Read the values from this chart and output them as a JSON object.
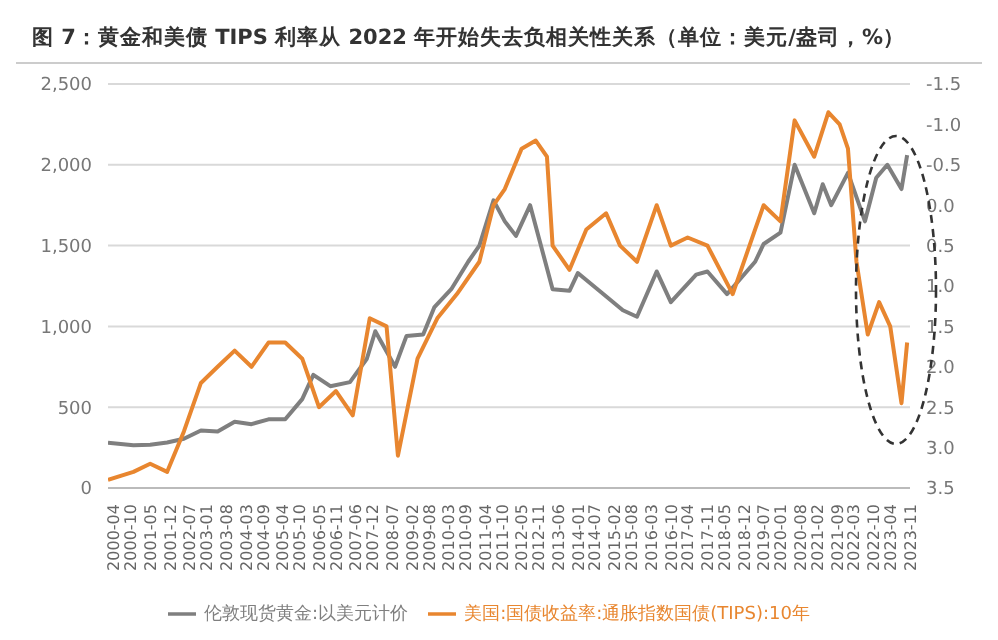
{
  "chart_data": {
    "type": "line",
    "title": "图 7：黄金和美债 TIPS 利率从 2022 年开始失去负相关性关系（单位：美元/盎司，%）",
    "series": [
      {
        "name": "伦敦现货黄金:以美元计价",
        "color": "#7f7f7f",
        "x": [
          "2000-04",
          "2001-01",
          "2001-07",
          "2002-01",
          "2002-07",
          "2003-01",
          "2003-07",
          "2004-01",
          "2004-07",
          "2005-01",
          "2005-07",
          "2006-01",
          "2006-05",
          "2006-11",
          "2007-06",
          "2007-12",
          "2008-03",
          "2008-10",
          "2009-02",
          "2009-08",
          "2009-12",
          "2010-06",
          "2010-12",
          "2011-04",
          "2011-09",
          "2012-01",
          "2012-05",
          "2012-10",
          "2013-06",
          "2013-12",
          "2014-03",
          "2014-12",
          "2015-07",
          "2015-12",
          "2016-07",
          "2016-12",
          "2017-09",
          "2018-01",
          "2018-08",
          "2019-06",
          "2019-09",
          "2020-03",
          "2020-08",
          "2021-03",
          "2021-06",
          "2021-09",
          "2022-03",
          "2022-09",
          "2023-01",
          "2023-05",
          "2023-10",
          "2023-12"
        ],
        "values": [
          280,
          265,
          268,
          282,
          305,
          356,
          350,
          410,
          395,
          425,
          425,
          550,
          700,
          630,
          655,
          800,
          970,
          750,
          940,
          950,
          1120,
          1230,
          1400,
          1500,
          1780,
          1650,
          1560,
          1750,
          1230,
          1220,
          1330,
          1200,
          1100,
          1060,
          1340,
          1150,
          1320,
          1340,
          1200,
          1400,
          1510,
          1580,
          2000,
          1700,
          1880,
          1750,
          1950,
          1650,
          1920,
          2000,
          1850,
          2060
        ]
      },
      {
        "name": "美国:国债收益率:通胀指数国债(TIPS):10年",
        "color": "#e8862f",
        "axis": "y2",
        "x": [
          "2000-04",
          "2001-01",
          "2001-07",
          "2002-01",
          "2002-07",
          "2003-01",
          "2003-07",
          "2004-01",
          "2004-07",
          "2005-01",
          "2005-07",
          "2006-01",
          "2006-07",
          "2007-01",
          "2007-07",
          "2008-01",
          "2008-07",
          "2008-11",
          "2009-06",
          "2010-01",
          "2010-08",
          "2011-04",
          "2011-09",
          "2012-01",
          "2012-07",
          "2012-12",
          "2013-04",
          "2013-06",
          "2013-12",
          "2014-06",
          "2015-01",
          "2015-06",
          "2015-12",
          "2016-07",
          "2016-12",
          "2017-06",
          "2018-01",
          "2018-10",
          "2019-06",
          "2019-09",
          "2020-03",
          "2020-08",
          "2021-03",
          "2021-08",
          "2021-12",
          "2022-03",
          "2022-06",
          "2022-10",
          "2023-02",
          "2023-06",
          "2023-10",
          "2023-12"
        ],
        "values": [
          3.4,
          3.3,
          3.2,
          3.3,
          2.8,
          2.2,
          2.0,
          1.8,
          2.0,
          1.7,
          1.7,
          1.9,
          2.5,
          2.3,
          2.6,
          1.4,
          1.5,
          3.1,
          1.9,
          1.4,
          1.1,
          0.7,
          0.0,
          -0.2,
          -0.7,
          -0.8,
          -0.6,
          0.5,
          0.8,
          0.3,
          0.1,
          0.5,
          0.7,
          0.0,
          0.5,
          0.4,
          0.5,
          1.1,
          0.3,
          0.0,
          0.2,
          -1.05,
          -0.6,
          -1.15,
          -1.0,
          -0.7,
          0.7,
          1.6,
          1.2,
          1.5,
          2.45,
          1.7
        ]
      }
    ],
    "xlim": [
      "2000-04",
      "2024-01"
    ],
    "xticks": [
      "2000-04",
      "2000-10",
      "2001-05",
      "2001-12",
      "2002-07",
      "2003-01",
      "2003-08",
      "2004-03",
      "2004-09",
      "2005-04",
      "2005-10",
      "2006-05",
      "2006-11",
      "2007-06",
      "2007-12",
      "2008-07",
      "2009-02",
      "2009-08",
      "2010-03",
      "2010-09",
      "2011-04",
      "2011-10",
      "2012-05",
      "2012-11",
      "2013-06",
      "2014-01",
      "2014-07",
      "2015-02",
      "2015-08",
      "2016-03",
      "2016-10",
      "2017-04",
      "2017-11",
      "2018-05",
      "2018-12",
      "2019-07",
      "2020-01",
      "2020-08",
      "2021-02",
      "2021-09",
      "2022-03",
      "2022-10",
      "2023-04",
      "2023-11"
    ],
    "ylim": [
      0,
      2500
    ],
    "yticks": [
      0,
      {
        "value": 500,
        "label": "500"
      },
      {
        "value": 1000,
        "label": "1,000"
      },
      {
        "value": 1500,
        "label": "1,500"
      },
      {
        "value": 2000,
        "label": "2,000"
      },
      {
        "value": 2500,
        "label": "2,500"
      }
    ],
    "y2lim": [
      3.5,
      -1.5
    ],
    "y2ticks": [
      {
        "value": -1.5,
        "label": "-1.5"
      },
      {
        "value": -1,
        "label": "-1.0"
      },
      {
        "value": -0.5,
        "label": "-0.5"
      },
      {
        "value": 0,
        "label": "0.0"
      },
      0.5,
      {
        "value": 1,
        "label": "1.0"
      },
      1.5,
      {
        "value": 2,
        "label": "2.0"
      },
      2.5,
      {
        "value": 3,
        "label": "3.0"
      },
      3.5
    ],
    "grid": "y",
    "legend": "bottom",
    "marker": "none",
    "line_style": "solid"
  }
}
